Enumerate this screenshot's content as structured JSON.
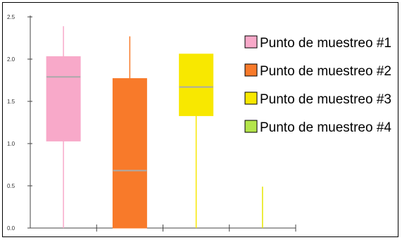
{
  "chart_data": {
    "type": "box",
    "ylim": [
      0,
      2.5
    ],
    "yticks": [
      "0.0",
      "0.5",
      "1.0",
      "1.5",
      "2.0",
      "2.5"
    ],
    "grid": false,
    "legend_position": "right",
    "series": [
      {
        "name": "Punto de muestreo #1",
        "color": "#f8a9c9",
        "whisker_color": "#f8a9c9",
        "min": 0.0,
        "q1": 1.03,
        "median": 1.79,
        "q3": 2.03,
        "max": 2.39
      },
      {
        "name": "Punto de muestreo #2",
        "color": "#f87a2a",
        "whisker_color": "#f87a2a",
        "min": 0.0,
        "q1": 0.0,
        "median": 0.68,
        "q3": 1.77,
        "max": 2.27
      },
      {
        "name": "Punto de muestreo #3",
        "color": "#f8e800",
        "whisker_color": "#f8e800",
        "min": 0.0,
        "q1": 1.33,
        "median": 1.67,
        "q3": 2.06,
        "max": 2.06
      },
      {
        "name": "Punto de muestreo #4",
        "color": "#b4e54a",
        "whisker_color": "#e6e600",
        "min": 0.0,
        "q1": 0.0,
        "median": 0.0,
        "q3": 0.0,
        "max": 0.49
      }
    ]
  }
}
